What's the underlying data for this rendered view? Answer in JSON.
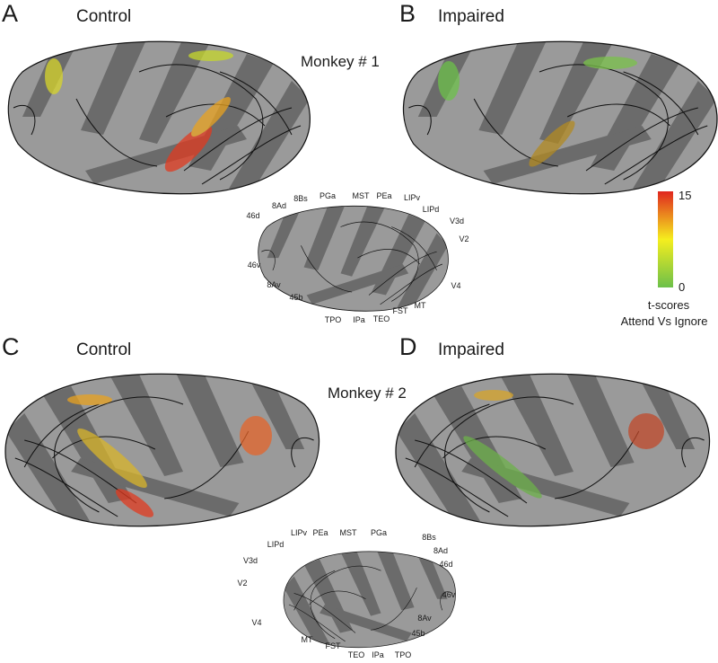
{
  "panels": [
    {
      "letter": "A",
      "title": "Control"
    },
    {
      "letter": "B",
      "title": "Impaired"
    },
    {
      "letter": "C",
      "title": "Control"
    },
    {
      "letter": "D",
      "title": "Impaired"
    }
  ],
  "monkeys": [
    "Monkey # 1",
    "Monkey # 2"
  ],
  "colorbar": {
    "max": 15,
    "min": 0,
    "label": "t-scores",
    "sublabel": "Attend Vs Ignore"
  },
  "atlas_1": [
    "PGa",
    "MST",
    "PEa",
    "LIPv",
    "LIPd",
    "V3d",
    "V2",
    "V4",
    "MT",
    "FST",
    "TEO",
    "IPa",
    "TPO",
    "45b",
    "8Av",
    "46v",
    "46d",
    "8Ad",
    "8Bs"
  ],
  "atlas_2": [
    "LIPv",
    "PEa",
    "MST",
    "PGa",
    "8Bs",
    "8Ad",
    "46d",
    "46v",
    "8Av",
    "45b",
    "TPO",
    "IPa",
    "TEO",
    "FST",
    "MT",
    "V4",
    "V2",
    "V3d",
    "LIPd"
  ]
}
